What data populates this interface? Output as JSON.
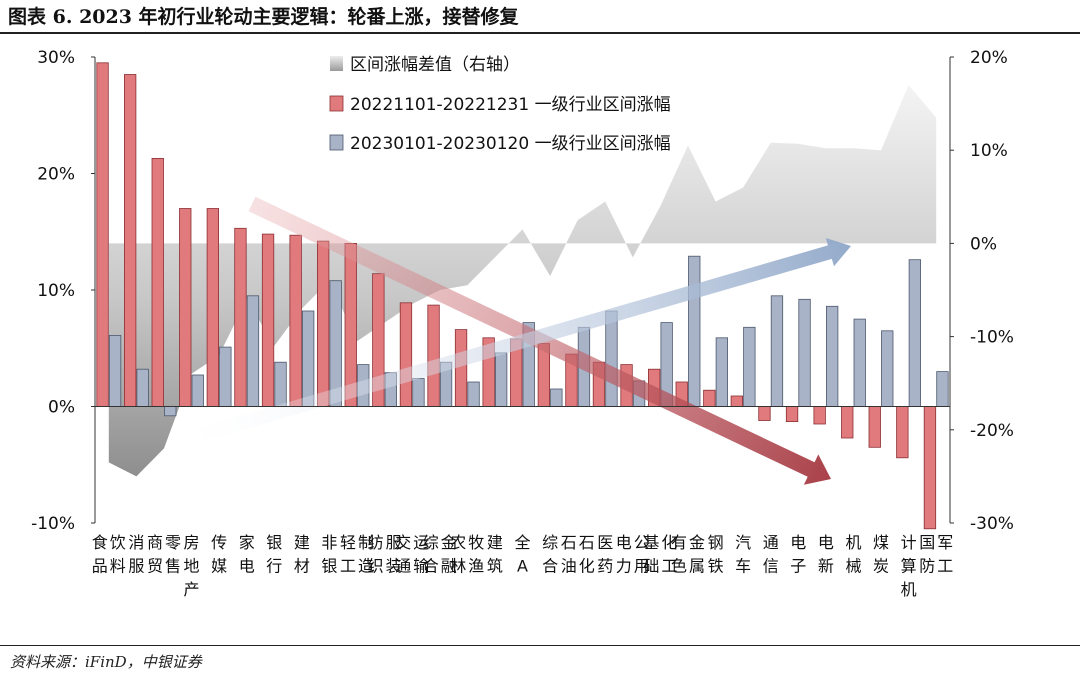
{
  "title": "图表 6. 2023 年初行业轮动主要逻辑：轮番上涨，接替修复",
  "source": "资料来源：iFinD，中银证券",
  "colors": {
    "series1": "#e07a7c",
    "series1_edge": "#8b2f33",
    "series2": "#a8b3c8",
    "series2_edge": "#4d586c",
    "area": "#c9c9c9",
    "arrow_red": "#a8323a",
    "arrow_blue": "#8fa6c6"
  },
  "chart_data": {
    "type": "bar",
    "categories": [
      "食品饮料",
      "消服",
      "商贸零售",
      "房地产",
      "传媒",
      "家电",
      "银行",
      "建材",
      "非银",
      "轻工制造",
      "纺织服装",
      "交通运输",
      "综合金融",
      "农林牧渔",
      "建筑",
      "全A",
      "综合",
      "石油石化",
      "医药",
      "电力公用",
      "基础化工",
      "有色金属",
      "钢铁",
      "汽车",
      "通信",
      "电子",
      "电新",
      "机械",
      "煤炭",
      "计算机",
      "国防军工"
    ],
    "series": [
      {
        "name": "20221101-20221231 一级行业区间涨幅",
        "axis": "left",
        "values": [
          29.5,
          28.5,
          21.3,
          17.0,
          17.0,
          15.3,
          14.8,
          14.7,
          14.2,
          14.0,
          11.4,
          8.9,
          8.7,
          6.6,
          5.9,
          5.8,
          5.4,
          4.5,
          3.8,
          3.6,
          3.2,
          2.1,
          1.4,
          0.9,
          -1.2,
          -1.3,
          -1.5,
          -2.7,
          -3.5,
          -4.4,
          -10.5
        ]
      },
      {
        "name": "20230101-20230120 一级行业区间涨幅",
        "axis": "left",
        "values": [
          6.1,
          3.2,
          -0.8,
          2.7,
          5.1,
          9.5,
          3.8,
          8.2,
          10.8,
          3.6,
          2.9,
          2.4,
          3.8,
          2.1,
          4.6,
          7.2,
          1.5,
          6.8,
          8.2,
          2.2,
          7.2,
          12.9,
          5.9,
          6.8,
          9.5,
          9.2,
          8.6,
          7.5,
          6.5,
          12.6,
          3.0
        ]
      },
      {
        "name": "区间涨幅差值（右轴）",
        "type": "area",
        "axis": "right",
        "values": [
          -23.5,
          -25.0,
          -22.0,
          -14.0,
          -12.0,
          -6.0,
          -11.0,
          -7.0,
          -4.0,
          -10.5,
          -8.5,
          -6.5,
          -5.0,
          -4.5,
          -1.5,
          1.5,
          -3.5,
          2.5,
          4.5,
          -1.5,
          4.0,
          10.5,
          4.5,
          6.0,
          10.8,
          10.7,
          10.2,
          10.2,
          10.0,
          17.0,
          13.5
        ]
      }
    ],
    "y_left": {
      "min": -10,
      "max": 30,
      "ticks": [
        "-10%",
        "0%",
        "10%",
        "20%",
        "30%"
      ],
      "values": [
        -10,
        0,
        10,
        20,
        30
      ]
    },
    "y_right": {
      "min": -30,
      "max": 20,
      "ticks": [
        "-30%",
        "-20%",
        "-10%",
        "0%",
        "10%",
        "20%"
      ],
      "values": [
        -30,
        -20,
        -10,
        0,
        10,
        20
      ]
    },
    "legend_position": "top-center",
    "grid": false
  }
}
